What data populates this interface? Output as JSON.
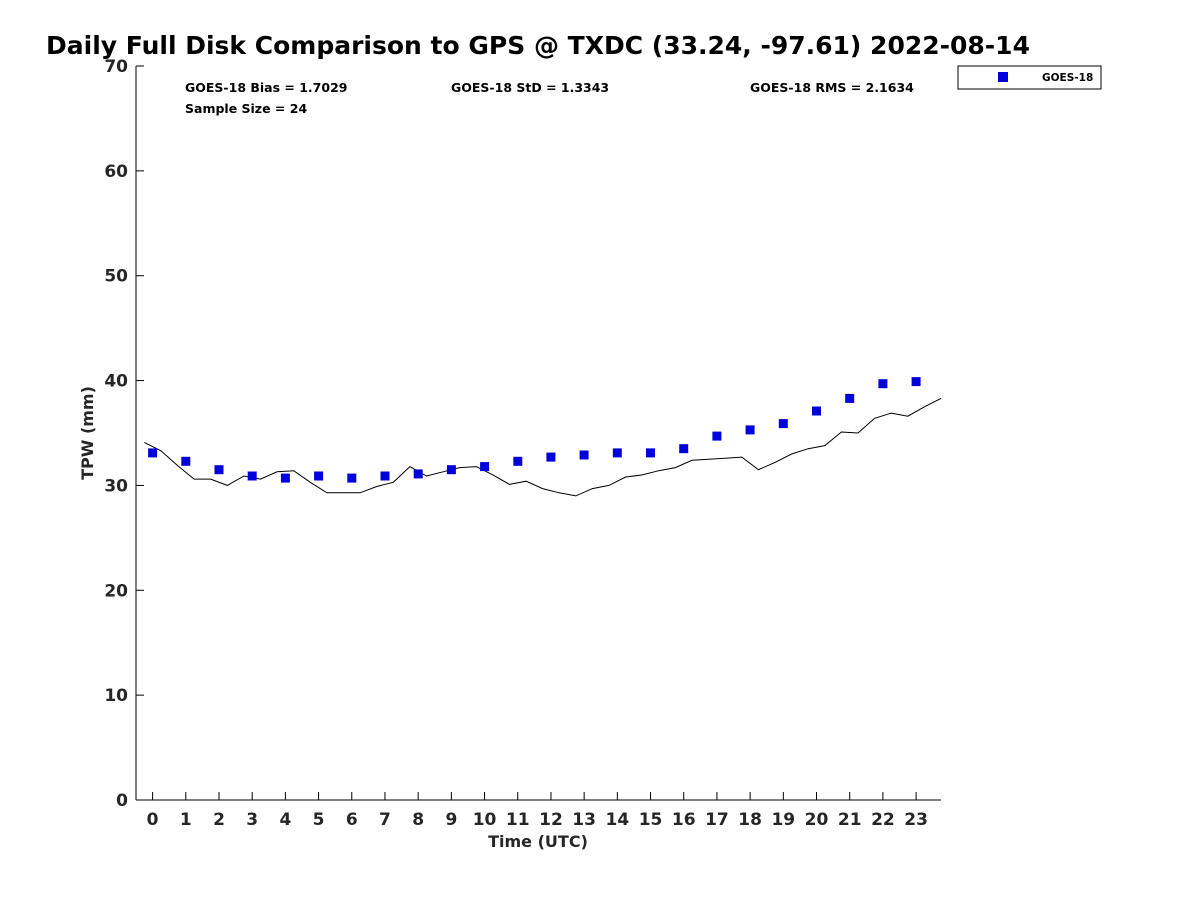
{
  "chart_data": {
    "type": "scatter",
    "title": "Daily Full Disk Comparison to GPS @ TXDC (33.24, -97.61) 2022-08-14",
    "xlabel": "Time (UTC)",
    "ylabel": "TPW (mm)",
    "xlim": [
      -0.5,
      23.75
    ],
    "ylim": [
      0,
      70
    ],
    "x_ticks": [
      0,
      1,
      2,
      3,
      4,
      5,
      6,
      7,
      8,
      9,
      10,
      11,
      12,
      13,
      14,
      15,
      16,
      17,
      18,
      19,
      20,
      21,
      22,
      23
    ],
    "y_ticks": [
      0,
      10,
      20,
      30,
      40,
      50,
      60,
      70
    ],
    "grid": false,
    "legend_position": "top-right-outside",
    "stats": {
      "bias": "GOES-18 Bias = 1.7029",
      "std": "GOES-18 StD = 1.3343",
      "rms": "GOES-18 RMS = 2.1634",
      "sample": "Sample Size = 24"
    },
    "series": [
      {
        "name": "GOES-18",
        "kind": "marker",
        "color": "#0000dd",
        "x": [
          0,
          1,
          2,
          3,
          4,
          5,
          6,
          7,
          8,
          9,
          10,
          11,
          12,
          13,
          14,
          15,
          16,
          17,
          18,
          19,
          20,
          21,
          22,
          23
        ],
        "y": [
          33.1,
          32.3,
          31.5,
          30.9,
          30.7,
          30.9,
          30.7,
          30.9,
          31.1,
          31.5,
          31.8,
          32.3,
          32.7,
          32.9,
          33.1,
          33.1,
          33.5,
          34.7,
          35.3,
          35.9,
          37.1,
          38.3,
          39.7,
          39.9
        ]
      },
      {
        "kind": "line",
        "color": "#000000",
        "x": [
          -0.25,
          0.25,
          0.75,
          1.25,
          1.75,
          2.25,
          2.75,
          3.25,
          3.75,
          4.25,
          4.75,
          5.25,
          5.75,
          6.25,
          6.75,
          7.25,
          7.75,
          8.25,
          8.75,
          9.25,
          9.75,
          10.25,
          10.75,
          11.25,
          11.75,
          12.25,
          12.75,
          13.25,
          13.75,
          14.25,
          14.75,
          15.25,
          15.75,
          16.25,
          16.75,
          17.25,
          17.75,
          18.25,
          18.75,
          19.25,
          19.75,
          20.25,
          20.75,
          21.25,
          21.75,
          22.25,
          22.75,
          23.25,
          23.75
        ],
        "y": [
          34.1,
          33.3,
          31.9,
          30.6,
          30.6,
          30.0,
          30.9,
          30.6,
          31.3,
          31.4,
          30.3,
          29.3,
          29.3,
          29.3,
          29.9,
          30.3,
          31.8,
          30.9,
          31.3,
          31.7,
          31.8,
          31.0,
          30.1,
          30.4,
          29.7,
          29.3,
          29.0,
          29.7,
          30.0,
          30.8,
          31.0,
          31.4,
          31.7,
          32.4,
          32.5,
          32.6,
          32.7,
          31.5,
          32.2,
          33.0,
          33.5,
          33.8,
          35.1,
          35.0,
          36.4,
          36.9,
          36.6,
          37.5,
          38.3
        ]
      }
    ]
  }
}
